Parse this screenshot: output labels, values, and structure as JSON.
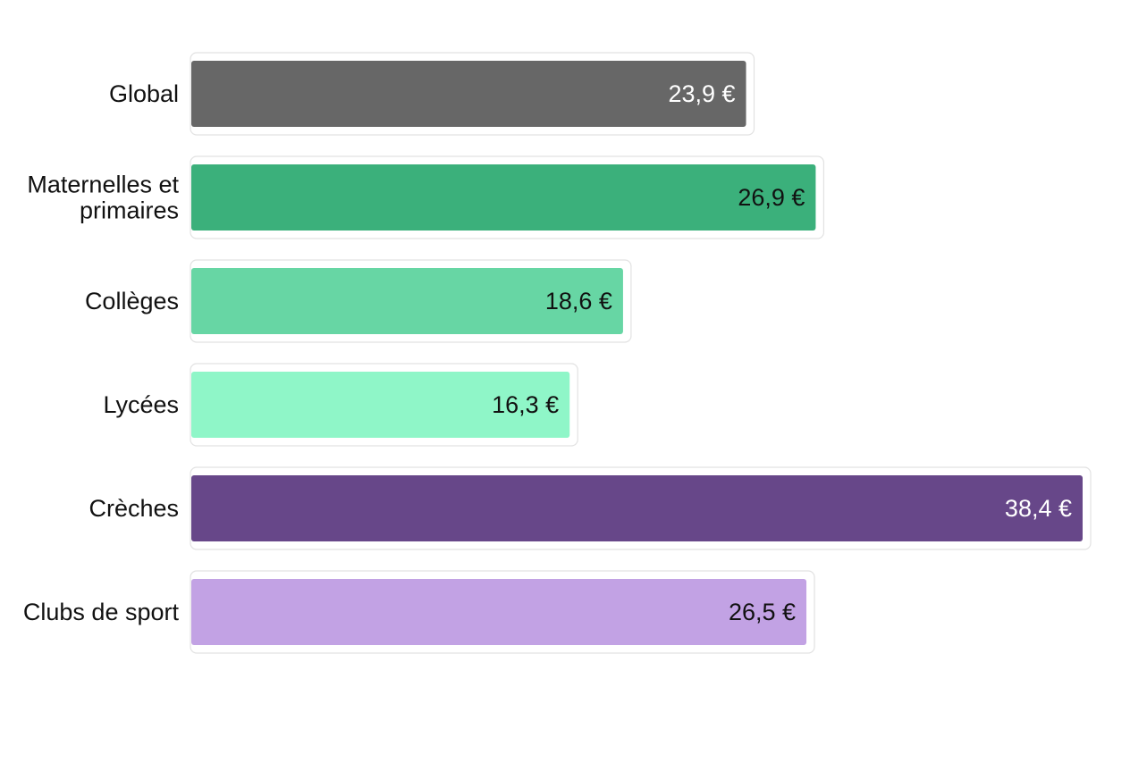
{
  "chart_data": {
    "type": "bar",
    "orientation": "horizontal",
    "title": "",
    "xlabel": "",
    "ylabel": "",
    "grid": false,
    "legend": "none",
    "unit": "€",
    "decimal_separator": ",",
    "categories": [
      "Global",
      "Maternelles et primaires",
      "Collèges",
      "Lycées",
      "Crèches",
      "Clubs de sport"
    ],
    "values": [
      23.9,
      26.9,
      18.6,
      16.3,
      38.4,
      26.5
    ],
    "value_labels": [
      "23,9 €",
      "26,9 €",
      "18,6 €",
      "16,3 €",
      "38,4 €",
      "26,5 €"
    ],
    "colors": [
      "#676767",
      "#3bb07b",
      "#67d6a4",
      "#8ff6c8",
      "#674789",
      "#c2a2e4"
    ],
    "label_colors": [
      "#ffffff",
      "#111111",
      "#111111",
      "#111111",
      "#ffffff",
      "#111111"
    ],
    "xlim": [
      0,
      38.4
    ]
  }
}
